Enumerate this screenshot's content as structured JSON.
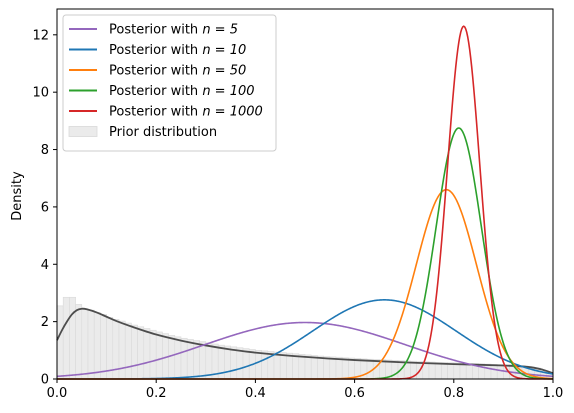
{
  "chart_data": {
    "type": "line",
    "title": "",
    "xlabel": "",
    "ylabel": "Density",
    "xlim": [
      0,
      1
    ],
    "ylim": [
      0,
      12.9
    ],
    "xticks": [
      0.0,
      0.2,
      0.4,
      0.6,
      0.8,
      1.0
    ],
    "xtick_labels": [
      "0.0",
      "0.2",
      "0.4",
      "0.6",
      "0.8",
      "1.0"
    ],
    "yticks": [
      0,
      2,
      4,
      6,
      8,
      10,
      12
    ],
    "ytick_labels": [
      "0",
      "2",
      "4",
      "6",
      "8",
      "10",
      "12"
    ],
    "grid": false,
    "legend_position": "top-left",
    "series": [
      {
        "name": "Posterior with n = 5",
        "name_prefix": "Posterior with ",
        "name_math": "n = 5",
        "color": "#9467bd",
        "kind": "normal",
        "mean": 0.5,
        "peak": 1.97
      },
      {
        "name": "Posterior with n = 10",
        "name_prefix": "Posterior with ",
        "name_math": "n = 10",
        "color": "#1f77b4",
        "kind": "normal",
        "mean": 0.66,
        "peak": 2.76
      },
      {
        "name": "Posterior with n = 50",
        "name_prefix": "Posterior with ",
        "name_math": "n = 50",
        "color": "#ff7f0e",
        "kind": "normal",
        "mean": 0.785,
        "peak": 6.6
      },
      {
        "name": "Posterior with n = 100",
        "name_prefix": "Posterior with ",
        "name_math": "n = 100",
        "color": "#2ca02c",
        "kind": "normal",
        "mean": 0.81,
        "peak": 8.75
      },
      {
        "name": "Posterior with n = 1000",
        "name_prefix": "Posterior with ",
        "name_math": "n = 1000",
        "color": "#d62728",
        "kind": "normal",
        "mean": 0.82,
        "peak": 12.3
      }
    ],
    "prior_density": {
      "color": "#4d4d4d",
      "x": [
        0.0,
        0.01,
        0.02,
        0.03,
        0.04,
        0.05,
        0.06,
        0.08,
        0.1,
        0.12,
        0.15,
        0.2,
        0.25,
        0.3,
        0.35,
        0.4,
        0.5,
        0.6,
        0.7,
        0.8,
        0.9,
        0.95,
        0.98,
        1.0
      ],
      "y": [
        1.35,
        1.7,
        2.0,
        2.25,
        2.4,
        2.45,
        2.43,
        2.32,
        2.17,
        2.02,
        1.83,
        1.55,
        1.34,
        1.17,
        1.03,
        0.92,
        0.77,
        0.66,
        0.58,
        0.52,
        0.47,
        0.42,
        0.32,
        0.2
      ]
    },
    "prior_histogram": {
      "name": "Prior distribution",
      "color": "#cccccc",
      "bin_width": 0.0125,
      "heights": [
        2.55,
        2.85,
        2.85,
        2.6,
        2.45,
        2.4,
        2.32,
        2.25,
        2.15,
        2.08,
        2.02,
        1.95,
        1.88,
        1.82,
        1.76,
        1.7,
        1.64,
        1.58,
        1.52,
        1.47,
        1.42,
        1.38,
        1.34,
        1.3,
        1.26,
        1.22,
        1.18,
        1.15,
        1.12,
        1.09,
        1.06,
        1.03,
        1.0,
        0.98,
        0.96,
        0.94,
        0.92,
        0.9,
        0.88,
        0.86,
        0.84,
        0.82,
        0.8,
        0.78,
        0.77,
        0.76,
        0.74,
        0.73,
        0.72,
        0.7,
        0.69,
        0.68,
        0.67,
        0.66,
        0.65,
        0.64,
        0.63,
        0.62,
        0.61,
        0.6,
        0.59,
        0.58,
        0.58,
        0.57,
        0.56,
        0.55,
        0.54,
        0.54,
        0.53,
        0.52,
        0.51,
        0.5,
        0.49,
        0.48,
        0.47,
        0.45,
        0.42,
        0.38,
        0.3,
        0.22
      ]
    }
  }
}
